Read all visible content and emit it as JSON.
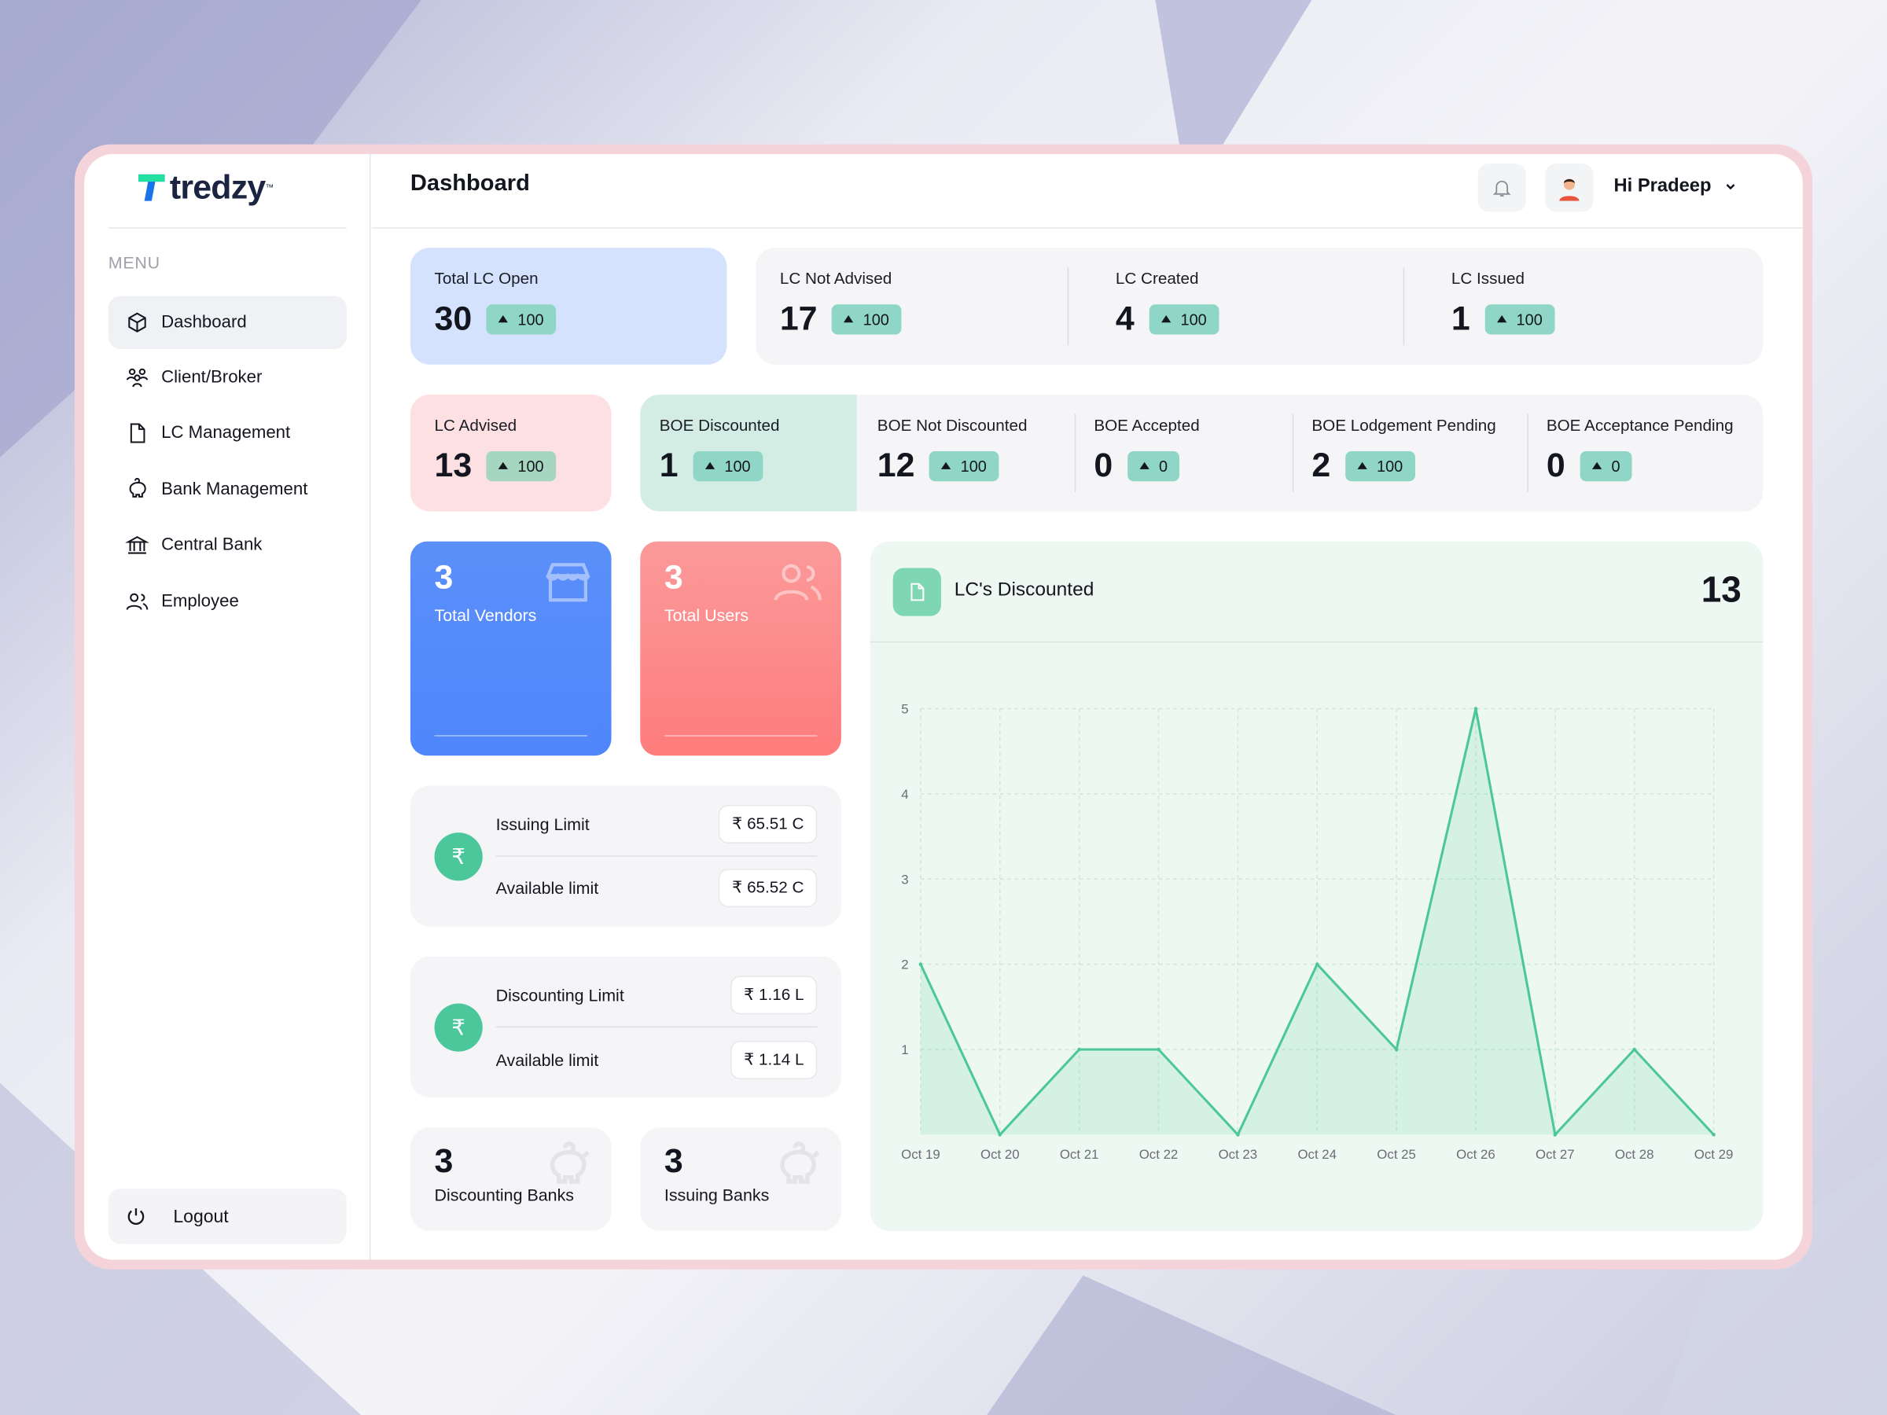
{
  "brand": {
    "name": "tredzy",
    "tm": "™"
  },
  "sidebar": {
    "menu_label": "MENU",
    "items": [
      {
        "label": "Dashboard",
        "icon": "cube-icon",
        "active": true
      },
      {
        "label": "Client/Broker",
        "icon": "users-icon"
      },
      {
        "label": "LC Management",
        "icon": "document-icon"
      },
      {
        "label": "Bank Management",
        "icon": "piggy-bank-icon"
      },
      {
        "label": "Central Bank",
        "icon": "bank-building-icon"
      },
      {
        "label": "Employee",
        "icon": "employee-icon"
      }
    ],
    "logout": "Logout"
  },
  "header": {
    "title": "Dashboard",
    "greeting": "Hi Pradeep"
  },
  "stats_row1": [
    {
      "label": "Total LC Open",
      "value": "30",
      "delta": "100"
    },
    {
      "label": "LC Not Advised",
      "value": "17",
      "delta": "100"
    },
    {
      "label": "LC Created",
      "value": "4",
      "delta": "100"
    },
    {
      "label": "LC Issued",
      "value": "1",
      "delta": "100"
    }
  ],
  "stats_row2": [
    {
      "label": "LC Advised",
      "value": "13",
      "delta": "100"
    },
    {
      "label": "BOE Discounted",
      "value": "1",
      "delta": "100"
    },
    {
      "label": "BOE Not Discounted",
      "value": "12",
      "delta": "100"
    },
    {
      "label": "BOE Accepted",
      "value": "0",
      "delta": "0"
    },
    {
      "label": "BOE Lodgement Pending",
      "value": "2",
      "delta": "100"
    },
    {
      "label": "BOE Acceptance Pending",
      "value": "0",
      "delta": "0"
    }
  ],
  "vendors": {
    "value": "3",
    "label": "Total Vendors"
  },
  "users": {
    "value": "3",
    "label": "Total Users"
  },
  "issuing": {
    "label": "Issuing Limit",
    "value": "₹ 65.51 C",
    "avail_label": "Available limit",
    "avail_value": "₹ 65.52 C"
  },
  "discounting": {
    "label": "Discounting Limit",
    "value": "₹ 1.16 L",
    "avail_label": "Available limit",
    "avail_value": "₹ 1.14 L"
  },
  "banks": [
    {
      "value": "3",
      "label": "Discounting Banks"
    },
    {
      "value": "3",
      "label": "Issuing Banks"
    }
  ],
  "colors": {
    "accent": "#4cc79b",
    "badge": "#8fd6c6",
    "blue_card": "#d4e2fd",
    "pink_card": "#fde0e1",
    "green_card": "#d4ede4"
  },
  "chart_data": {
    "type": "area",
    "title": "LC's Discounted",
    "total": "13",
    "categories": [
      "Oct 19",
      "Oct 20",
      "Oct 21",
      "Oct 22",
      "Oct 23",
      "Oct 24",
      "Oct 25",
      "Oct 26",
      "Oct 27",
      "Oct 28",
      "Oct 29"
    ],
    "values": [
      2,
      0,
      1,
      1,
      0,
      2,
      1,
      5,
      0,
      1,
      0
    ],
    "yticks": [
      1,
      2,
      3,
      4,
      5
    ],
    "ylim": [
      0,
      5
    ],
    "grid": true,
    "color": "#4cc79b"
  }
}
